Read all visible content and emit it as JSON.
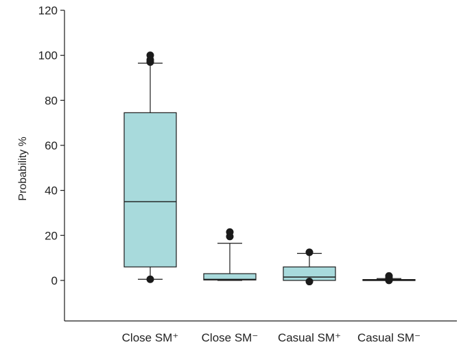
{
  "chart_data": {
    "type": "boxplot",
    "ylabel": "Probability %",
    "ylim": [
      -18,
      120
    ],
    "yticks": [
      0,
      20,
      40,
      60,
      80,
      100,
      120
    ],
    "grid": false,
    "colors": {
      "box_fill": "#a8dadc",
      "stroke": "#1a1a1a",
      "outlier": "#1a1a1a"
    },
    "categories": [
      {
        "label": "Close SM⁺",
        "whisker_low": 0.5,
        "q1": 6,
        "median": 35,
        "q3": 74.5,
        "whisker_high": 96.5,
        "outliers": [
          0.5,
          97,
          98,
          100
        ]
      },
      {
        "label": "Close SM⁻",
        "whisker_low": 0,
        "q1": 0.2,
        "median": 0.5,
        "q3": 3,
        "whisker_high": 16.5,
        "outliers": [
          19.5,
          21.5
        ]
      },
      {
        "label": "Casual SM⁺",
        "whisker_low": 0,
        "q1": 0,
        "median": 1.5,
        "q3": 6,
        "whisker_high": 12,
        "outliers": [
          -0.5,
          12.5
        ]
      },
      {
        "label": "Casual SM⁻",
        "whisker_low": 0,
        "q1": 0.2,
        "median": 0.3,
        "q3": 0.4,
        "whisker_high": 0.8,
        "outliers": [
          0,
          1,
          2
        ]
      }
    ]
  }
}
